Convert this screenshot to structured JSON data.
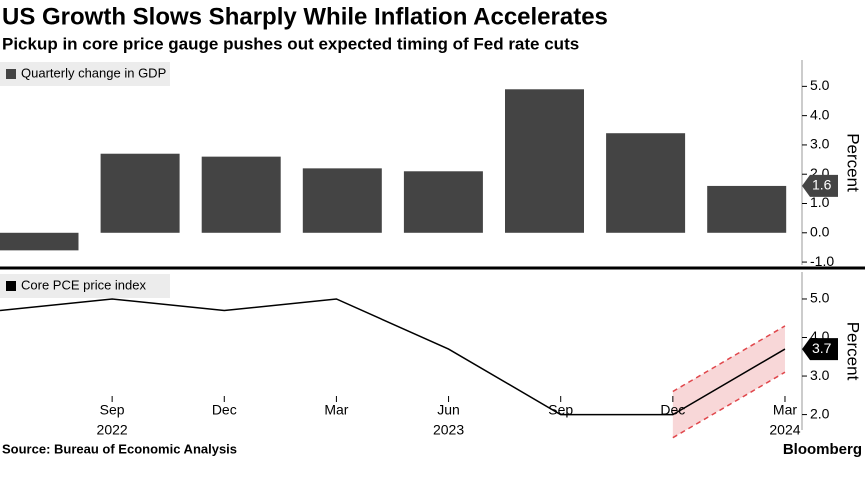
{
  "title": "US Growth Slows Sharply While Inflation Accelerates",
  "subtitle": "Pickup in core price gauge pushes out expected timing of Fed rate cuts",
  "source": "Source: Bureau of Economic Analysis",
  "brand": "Bloomberg",
  "chart_data": [
    {
      "type": "bar",
      "axis_label": "Percent",
      "series": [
        {
          "name": "Quarterly change in GDP",
          "color": "#444444",
          "values": [
            -0.6,
            2.7,
            2.6,
            2.2,
            2.1,
            4.9,
            3.4,
            1.6
          ]
        }
      ],
      "ylim": [
        -1.1,
        5.9
      ],
      "yticks": [
        {
          "value": -1,
          "label": "-1.0"
        },
        {
          "value": 0,
          "label": "0.0"
        },
        {
          "value": 1,
          "label": "1.0"
        },
        {
          "value": 2,
          "label": "2.0"
        },
        {
          "value": 3,
          "label": "3.0"
        },
        {
          "value": 4,
          "label": "4.0"
        },
        {
          "value": 5,
          "label": "5.0"
        }
      ]
    },
    {
      "type": "line",
      "axis_label": "Percent",
      "categories": [
        null,
        "Sep",
        "Dec",
        "Mar",
        "Jun",
        "Sep",
        "Dec",
        "Mar"
      ],
      "category_years": [
        null,
        "2022",
        null,
        null,
        "2023",
        null,
        null,
        "2024"
      ],
      "series": [
        {
          "name": "Core PCE price index",
          "color": "#000000",
          "values": [
            4.7,
            5.0,
            4.7,
            5.0,
            3.7,
            2.0,
            2.0,
            3.7
          ]
        }
      ],
      "band": {
        "color": "#e0474c",
        "lower": [
          null,
          null,
          null,
          null,
          null,
          null,
          1.4,
          3.1
        ],
        "upper": [
          null,
          null,
          null,
          null,
          null,
          null,
          2.6,
          4.3
        ]
      },
      "ylim": [
        1.6,
        5.7
      ],
      "yticks": [
        {
          "value": 2,
          "label": "2.0"
        },
        {
          "value": 3,
          "label": "3.0"
        },
        {
          "value": 4,
          "label": "4.0"
        },
        {
          "value": 5,
          "label": "5.0"
        }
      ]
    }
  ]
}
